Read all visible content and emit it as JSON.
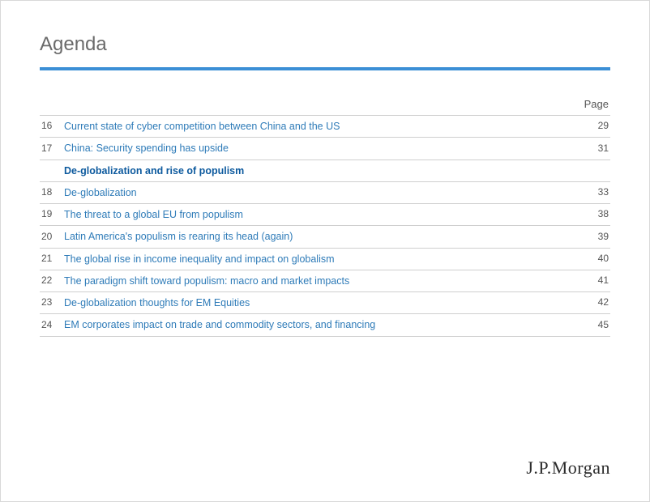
{
  "heading": "Agenda",
  "page_label": "Page",
  "rows": [
    {
      "type": "item",
      "num": "16",
      "title": "Current state of cyber competition between China and the US",
      "page": "29"
    },
    {
      "type": "item",
      "num": "17",
      "title": "China: Security spending has upside",
      "page": "31"
    },
    {
      "type": "section",
      "title": "De-globalization and rise of populism"
    },
    {
      "type": "item",
      "num": "18",
      "title": "De-globalization",
      "page": "33"
    },
    {
      "type": "item",
      "num": "19",
      "title": "The threat to a global EU from populism",
      "page": "38"
    },
    {
      "type": "item",
      "num": "20",
      "title": "Latin America's populism is rearing its head (again)",
      "page": "39"
    },
    {
      "type": "item",
      "num": "21",
      "title": "The global rise in income inequality and impact on globalism",
      "page": "40"
    },
    {
      "type": "item",
      "num": "22",
      "title": "The paradigm shift toward populism: macro and market impacts",
      "page": "41"
    },
    {
      "type": "item",
      "num": "23",
      "title": "De-globalization thoughts for EM Equities",
      "page": "42"
    },
    {
      "type": "item",
      "num": "24",
      "title": "EM corporates impact on trade and commodity sectors, and financing",
      "page": "45"
    }
  ],
  "logo": {
    "prefix": "J.P.",
    "suffix": "Morgan"
  },
  "colors": {
    "accent": "#3b8fd6",
    "link": "#2e7bb8",
    "section": "#0d5a9e",
    "border": "#cfcfcf",
    "heading": "#6a6a6a"
  }
}
